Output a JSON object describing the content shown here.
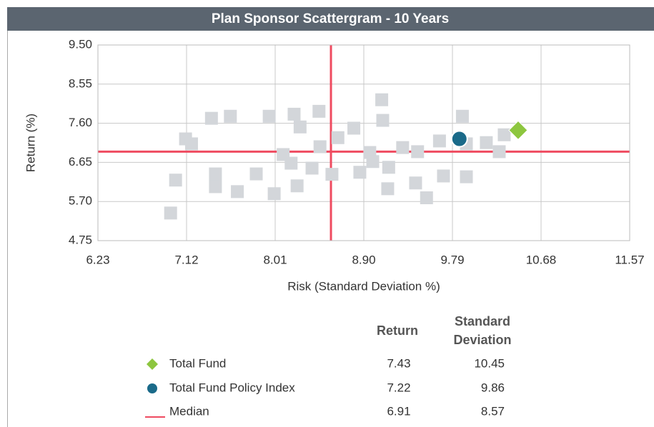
{
  "chart_data": {
    "type": "scatter",
    "title": "Plan Sponsor Scattergram - 10 Years",
    "x_label": "Risk (Standard Deviation %)",
    "y_label": "Return (%)",
    "xlim": [
      6.23,
      11.57
    ],
    "ylim": [
      4.75,
      9.5
    ],
    "xticks": [
      6.23,
      7.12,
      8.01,
      {
        "value": 8.9,
        "label": "8.90"
      },
      9.79,
      10.68,
      11.57
    ],
    "yticks": [
      4.75,
      {
        "value": 5.7,
        "label": "5.70"
      },
      6.65,
      {
        "value": 7.6,
        "label": "7.60"
      },
      8.55,
      {
        "value": 9.5,
        "label": "9.50"
      }
    ],
    "grid": true,
    "series": [
      {
        "color": "#d3d6da",
        "marker": "square",
        "x": [
          6.96,
          7.01,
          7.11,
          7.17,
          7.37,
          7.56,
          7.41,
          7.41,
          7.63,
          7.82,
          7.95,
          8.0,
          8.09,
          8.17,
          8.2,
          8.26,
          8.23,
          8.38,
          8.45,
          8.46,
          8.58,
          8.64,
          8.8,
          8.86,
          8.96,
          8.99,
          9.08,
          9.09,
          9.15,
          9.14,
          9.29,
          9.44,
          9.42,
          9.53,
          9.66,
          9.7,
          9.89,
          9.93,
          9.93,
          10.13,
          10.26,
          10.31
        ],
        "y": [
          5.42,
          6.22,
          7.22,
          7.1,
          7.72,
          7.77,
          6.37,
          6.06,
          5.94,
          6.37,
          7.77,
          5.89,
          6.84,
          6.63,
          7.82,
          7.51,
          6.08,
          6.51,
          7.89,
          7.03,
          6.36,
          7.25,
          7.48,
          6.41,
          6.89,
          6.67,
          8.17,
          7.67,
          6.53,
          6.01,
          7.01,
          6.91,
          6.15,
          5.79,
          7.17,
          6.32,
          7.77,
          7.1,
          6.3,
          7.13,
          6.91,
          7.32
        ]
      },
      {
        "name": "Total Fund",
        "color": "#8dc63f",
        "marker": "diamond",
        "x": [
          10.45
        ],
        "y": [
          7.43
        ]
      },
      {
        "name": "Total Fund Policy Index",
        "color": "#1a6a89",
        "marker": "circle",
        "x": [
          9.86
        ],
        "y": [
          7.22
        ]
      }
    ],
    "median": {
      "name": "Median",
      "color": "#ef4b60",
      "x": 8.57,
      "y": 6.91
    },
    "table_headers": [
      "Return",
      "Standard Deviation"
    ]
  }
}
